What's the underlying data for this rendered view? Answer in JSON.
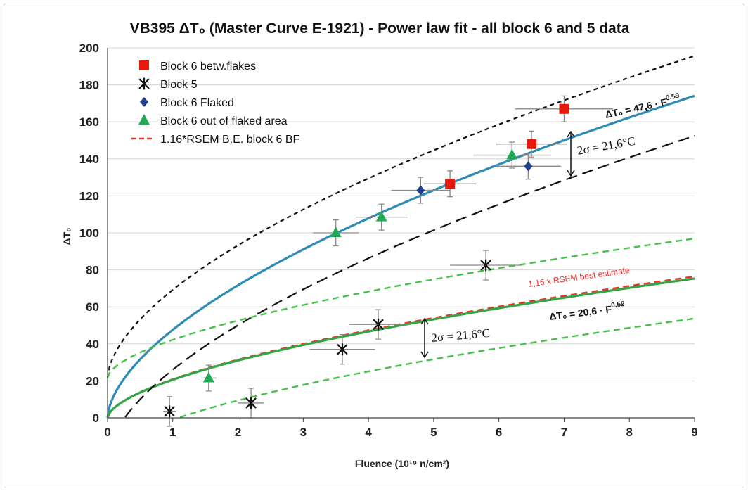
{
  "chart_data": {
    "type": "scatter",
    "title": "VB395 ΔT₀ (Master Curve E-1921) - Power law fit -  all block 6 and 5 data",
    "xlabel": "Fluence (10¹⁹ n/cm²)",
    "ylabel": "ΔT₀",
    "xlim": [
      0,
      9
    ],
    "ylim": [
      0,
      200
    ],
    "x_ticks": [
      0,
      1,
      2,
      3,
      4,
      5,
      6,
      7,
      8,
      9
    ],
    "y_ticks": [
      0,
      20,
      40,
      60,
      80,
      100,
      120,
      140,
      160,
      180,
      200
    ],
    "grid": "horizontal",
    "legend_position": "top-left",
    "series": [
      {
        "name": "Block 6 betw.flakes",
        "marker": "square",
        "color": "#e8180c",
        "points": [
          {
            "x": 5.25,
            "y": 126.5,
            "xerr": 0.4,
            "yerr": 7
          },
          {
            "x": 6.5,
            "y": 148,
            "xerr": 0.55,
            "yerr": 7
          },
          {
            "x": 7.0,
            "y": 167,
            "xerr": 0.75,
            "yerr": 7
          }
        ]
      },
      {
        "name": "Block 5",
        "marker": "star",
        "color": "#111111",
        "points": [
          {
            "x": 0.95,
            "y": 3.5,
            "xerr": 0.1,
            "yerr": 8
          },
          {
            "x": 2.2,
            "y": 8,
            "xerr": 0.2,
            "yerr": 8
          },
          {
            "x": 3.6,
            "y": 37,
            "xerr": 0.5,
            "yerr": 8
          },
          {
            "x": 4.15,
            "y": 50.5,
            "xerr": 0.45,
            "yerr": 8
          },
          {
            "x": 5.8,
            "y": 82.5,
            "xerr": 0.55,
            "yerr": 8
          }
        ]
      },
      {
        "name": "Block 6 Flaked",
        "marker": "diamond",
        "color": "#1f3e8c",
        "points": [
          {
            "x": 4.8,
            "y": 123,
            "xerr": 0.45,
            "yerr": 7
          },
          {
            "x": 6.45,
            "y": 136,
            "xerr": 0.5,
            "yerr": 7
          }
        ]
      },
      {
        "name": "Block 6 out of flaked area",
        "marker": "triangle",
        "color": "#22aa55",
        "points": [
          {
            "x": 1.55,
            "y": 21.5,
            "xerr": 0.12,
            "yerr": 7
          },
          {
            "x": 3.5,
            "y": 100,
            "xerr": 0.35,
            "yerr": 7
          },
          {
            "x": 4.2,
            "y": 108.5,
            "xerr": 0.4,
            "yerr": 7
          },
          {
            "x": 6.2,
            "y": 142,
            "xerr": 0.6,
            "yerr": 7
          }
        ]
      }
    ],
    "curves": [
      {
        "name": "1.16*RSEM B.E. block 6 BF",
        "kind": "power",
        "a": 20.9,
        "b": 0.59,
        "color": "#e8322a",
        "style": "dashed",
        "in_legend": true
      },
      {
        "kind": "power",
        "a": 47.6,
        "b": 0.59,
        "color": "#2e8cb4",
        "style": "solid"
      },
      {
        "kind": "power",
        "a": 20.6,
        "b": 0.59,
        "color": "#33a544",
        "style": "solid"
      },
      {
        "kind": "power",
        "a": 47.6,
        "b": 0.59,
        "offset": 21.6,
        "color": "#111111",
        "style": "short-dash"
      },
      {
        "kind": "power",
        "a": 47.6,
        "b": 0.59,
        "offset": -21.6,
        "color": "#111111",
        "style": "long-dash"
      },
      {
        "kind": "power",
        "a": 20.6,
        "b": 0.59,
        "offset": 21.6,
        "color": "#46c24a",
        "style": "dashed"
      },
      {
        "kind": "power",
        "a": 20.6,
        "b": 0.59,
        "offset": -21.6,
        "color": "#46c24a",
        "style": "dashed"
      }
    ],
    "annotations": {
      "upper_fit": "ΔT₀ = 47,6 · F",
      "upper_fit_exp": "0.59",
      "lower_fit": "ΔT₀ = 20,6 · F",
      "lower_fit_exp": "0.59",
      "sigma_upper": "2σ = 21,6°C",
      "sigma_lower": "2σ = 21,6°C",
      "rsem": "1,16 x RSEM best estimate"
    }
  }
}
